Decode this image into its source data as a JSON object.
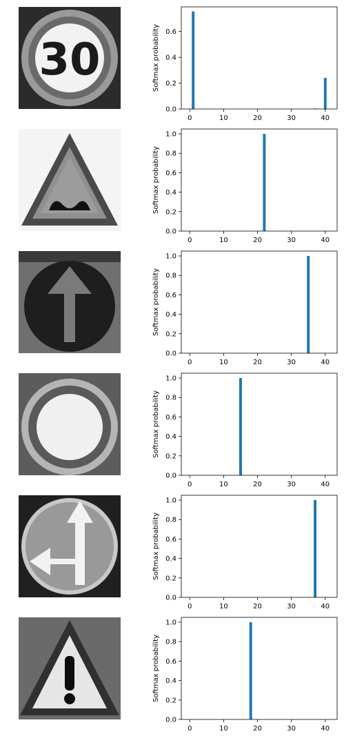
{
  "chart_data": [
    {
      "type": "bar",
      "image_icon": "speed-limit-30-sign",
      "ylabel": "Softmax probability",
      "xlim": [
        -2.5,
        43.5
      ],
      "ylim": [
        0,
        0.79
      ],
      "xticks": [
        0,
        10,
        20,
        30,
        40
      ],
      "xtick_labels": [
        "0",
        "10",
        "20",
        "30",
        "40"
      ],
      "yticks": [
        0,
        0.2,
        0.4,
        0.6
      ],
      "ytick_labels": [
        "0.0",
        "0.2",
        "0.4",
        "0.6"
      ],
      "x": [
        1,
        37,
        40
      ],
      "values": [
        0.755,
        0.004,
        0.241
      ],
      "bar_color": "#1f77b4"
    },
    {
      "type": "bar",
      "image_icon": "bumpy-road-warning-sign",
      "ylabel": "Softmax probability",
      "xlim": [
        -2.5,
        43.5
      ],
      "ylim": [
        0,
        1.05
      ],
      "xticks": [
        0,
        10,
        20,
        30,
        40
      ],
      "xtick_labels": [
        "0",
        "10",
        "20",
        "30",
        "40"
      ],
      "yticks": [
        0,
        0.2,
        0.4,
        0.6,
        0.8,
        1.0
      ],
      "ytick_labels": [
        "0.0",
        "0.2",
        "0.4",
        "0.6",
        "0.8",
        "1.0"
      ],
      "x": [
        22
      ],
      "values": [
        1.0
      ],
      "bar_color": "#1f77b4"
    },
    {
      "type": "bar",
      "image_icon": "ahead-only-sign",
      "ylabel": "Softmax probability",
      "xlim": [
        -2.5,
        43.5
      ],
      "ylim": [
        0,
        1.05
      ],
      "xticks": [
        0,
        10,
        20,
        30,
        40
      ],
      "xtick_labels": [
        "0",
        "10",
        "20",
        "30",
        "40"
      ],
      "yticks": [
        0,
        0.2,
        0.4,
        0.6,
        0.8,
        1.0
      ],
      "ytick_labels": [
        "0.0",
        "0.2",
        "0.4",
        "0.6",
        "0.8",
        "1.0"
      ],
      "x": [
        35
      ],
      "values": [
        1.0
      ],
      "bar_color": "#1f77b4"
    },
    {
      "type": "bar",
      "image_icon": "no-vehicles-sign",
      "ylabel": "Softmax probability",
      "xlim": [
        -2.5,
        43.5
      ],
      "ylim": [
        0,
        1.05
      ],
      "xticks": [
        0,
        10,
        20,
        30,
        40
      ],
      "xtick_labels": [
        "0",
        "10",
        "20",
        "30",
        "40"
      ],
      "yticks": [
        0,
        0.2,
        0.4,
        0.6,
        0.8,
        1.0
      ],
      "ytick_labels": [
        "0.0",
        "0.2",
        "0.4",
        "0.6",
        "0.8",
        "1.0"
      ],
      "x": [
        15
      ],
      "values": [
        1.0
      ],
      "bar_color": "#1f77b4"
    },
    {
      "type": "bar",
      "image_icon": "go-straight-or-left-sign",
      "ylabel": "Softmax probability",
      "xlim": [
        -2.5,
        43.5
      ],
      "ylim": [
        0,
        1.05
      ],
      "xticks": [
        0,
        10,
        20,
        30,
        40
      ],
      "xtick_labels": [
        "0",
        "10",
        "20",
        "30",
        "40"
      ],
      "yticks": [
        0,
        0.2,
        0.4,
        0.6,
        0.8,
        1.0
      ],
      "ytick_labels": [
        "0.0",
        "0.2",
        "0.4",
        "0.6",
        "0.8",
        "1.0"
      ],
      "x": [
        37
      ],
      "values": [
        1.0
      ],
      "bar_color": "#1f77b4"
    },
    {
      "type": "bar",
      "image_icon": "general-caution-sign",
      "ylabel": "Softmax probability",
      "xlim": [
        -2.5,
        43.5
      ],
      "ylim": [
        0,
        1.05
      ],
      "xticks": [
        0,
        10,
        20,
        30,
        40
      ],
      "xtick_labels": [
        "0",
        "10",
        "20",
        "30",
        "40"
      ],
      "yticks": [
        0,
        0.2,
        0.4,
        0.6,
        0.8,
        1.0
      ],
      "ytick_labels": [
        "0.0",
        "0.2",
        "0.4",
        "0.6",
        "0.8",
        "1.0"
      ],
      "x": [
        18
      ],
      "values": [
        1.0
      ],
      "bar_color": "#1f77b4"
    }
  ]
}
